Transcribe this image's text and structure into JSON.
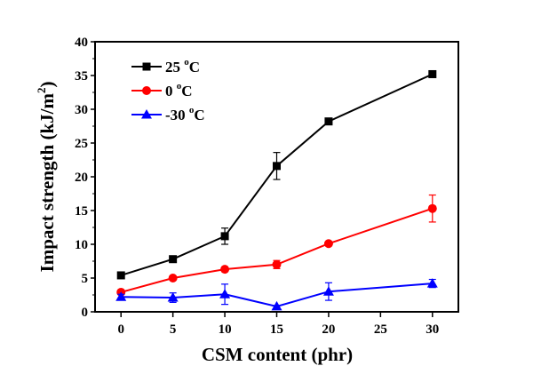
{
  "chart_data": {
    "type": "line",
    "title": "",
    "xlabel": "CSM content (phr)",
    "ylabel": "Impact strength (kJ/m",
    "ylabel_sup": "2",
    "ylabel_close": ")",
    "xlim": [
      -2.5,
      32.5
    ],
    "ylim": [
      0,
      40
    ],
    "xticks": [
      0,
      5,
      10,
      15,
      20,
      25,
      30
    ],
    "yticks": [
      0,
      5,
      10,
      15,
      20,
      25,
      30,
      35,
      40
    ],
    "grid": false,
    "legend_position": "top-left",
    "series": [
      {
        "name": "25 °C",
        "label_num": "25",
        "label_deg": "o",
        "label_unit": "C",
        "color": "#000000",
        "marker": "square",
        "x": [
          0,
          5,
          10,
          15,
          20,
          30
        ],
        "y": [
          5.4,
          7.8,
          11.2,
          21.6,
          28.2,
          35.2
        ],
        "err": [
          0,
          0,
          1.2,
          2.0,
          0,
          0
        ]
      },
      {
        "name": "0 °C",
        "label_num": "0",
        "label_deg": "o",
        "label_unit": "C",
        "color": "#ff0000",
        "marker": "circle",
        "x": [
          0,
          5,
          10,
          15,
          20,
          30
        ],
        "y": [
          2.9,
          5.0,
          6.3,
          7.0,
          10.1,
          15.3
        ],
        "err": [
          0,
          0,
          0,
          0.6,
          0,
          2.0
        ]
      },
      {
        "name": "-30 °C",
        "label_num": "-30",
        "label_deg": "o",
        "label_unit": "C",
        "color": "#0000ff",
        "marker": "triangle",
        "x": [
          0,
          5,
          10,
          15,
          20,
          30
        ],
        "y": [
          2.2,
          2.1,
          2.6,
          0.8,
          3.0,
          4.2
        ],
        "err": [
          0.4,
          0.7,
          1.5,
          0,
          1.3,
          0.6
        ]
      }
    ]
  }
}
